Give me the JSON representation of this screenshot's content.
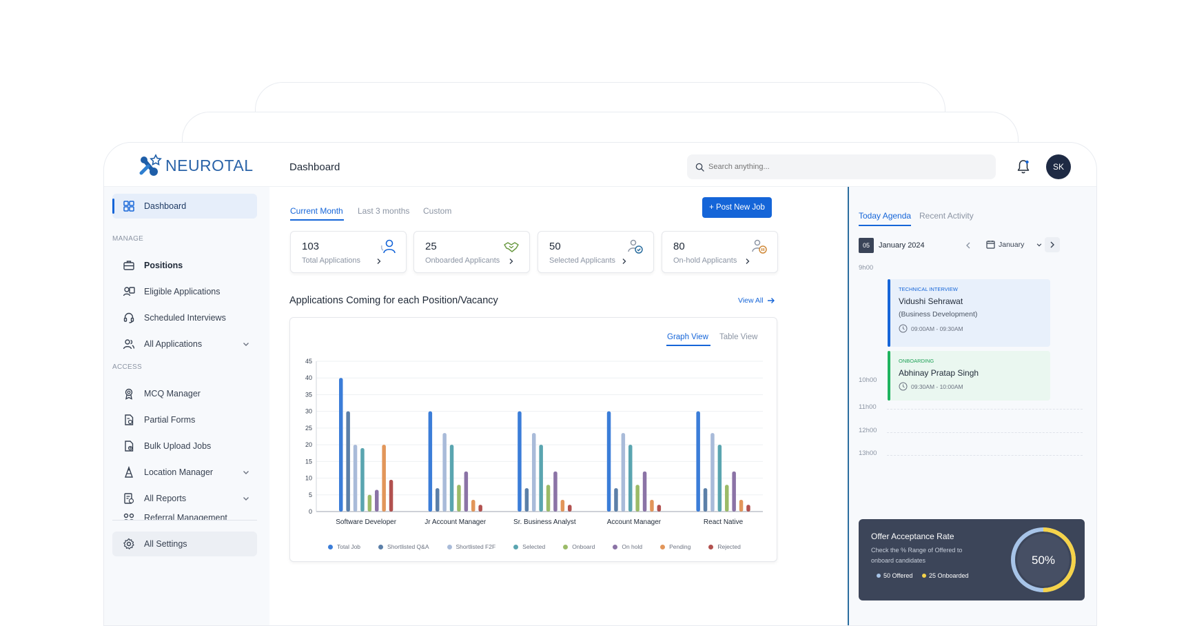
{
  "brand": {
    "name": "NEUROTAL"
  },
  "header": {
    "title": "Dashboard",
    "search_placeholder": "Search anything...",
    "avatar_initials": "SK"
  },
  "sidebar": {
    "dashboard": "Dashboard",
    "manage_label": "MANAGE",
    "positions": "Positions",
    "eligible_applications": "Eligible Applications",
    "scheduled_interviews": "Scheduled Interviews",
    "all_applications": "All Applications",
    "access_label": "ACCESS",
    "mcq_manager": "MCQ Manager",
    "partial_forms": "Partial Forms",
    "bulk_upload_jobs": "Bulk Upload Jobs",
    "location_manager": "Location Manager",
    "all_reports": "All Reports",
    "referral_management": "Referral Management",
    "all_settings": "All Settings"
  },
  "periods": {
    "current_month": "Current Month",
    "last_3_months": "Last 3 months",
    "custom": "Custom"
  },
  "post_job_label": "+  Post New Job",
  "stats": [
    {
      "value": "103",
      "label": "Total Applications"
    },
    {
      "value": "25",
      "label": "Onboarded Applicants"
    },
    {
      "value": "50",
      "label": "Selected Applicants"
    },
    {
      "value": "80",
      "label": "On-hold Applicants"
    }
  ],
  "section_title": "Applications Coming for each Position/Vacancy",
  "view_all": "View All",
  "chart_tabs": {
    "graph": "Graph View",
    "table": "Table View"
  },
  "chart_data": {
    "type": "bar",
    "categories": [
      "Software Developer",
      "Jr Account Manager",
      "Sr. Business Analyst",
      "Account Manager",
      "React Native"
    ],
    "ylim": [
      0,
      45
    ],
    "yticks": [
      0,
      5,
      10,
      15,
      20,
      25,
      30,
      35,
      40,
      45
    ],
    "grid": true,
    "legend_position": "bottom",
    "series": [
      {
        "name": "Total Job",
        "color": "#3b7dd8",
        "values": [
          40,
          30,
          30,
          30,
          30
        ]
      },
      {
        "name": "Shortlisted Q&A",
        "color": "#5b7fa8",
        "values": [
          30,
          7,
          7,
          7,
          7
        ]
      },
      {
        "name": "Shortlisted F2F",
        "color": "#a9bbd9",
        "values": [
          20,
          23.5,
          23.5,
          23.5,
          23.5
        ]
      },
      {
        "name": "Selected",
        "color": "#5aa5b0",
        "values": [
          19,
          20,
          20,
          20,
          20
        ]
      },
      {
        "name": "Onboard",
        "color": "#9bbb68",
        "values": [
          5,
          8,
          8,
          8,
          8
        ]
      },
      {
        "name": "On hold",
        "color": "#8b73a6",
        "values": [
          6.5,
          12,
          12,
          12,
          12
        ]
      },
      {
        "name": "Pending",
        "color": "#e2965a",
        "values": [
          20,
          3.5,
          3.5,
          3.5,
          3.5
        ]
      },
      {
        "name": "Rejected",
        "color": "#b2514f",
        "values": [
          9.5,
          2,
          2,
          2,
          2
        ]
      }
    ]
  },
  "agenda": {
    "tab_today": "Today Agenda",
    "tab_recent": "Recent Activity",
    "day": "05",
    "month_year": "January 2024",
    "month_select": "January",
    "times": [
      "9h00",
      "10h00",
      "11h00",
      "12h00",
      "13h00"
    ],
    "events": [
      {
        "category": "TECHNICAL INTERVIEW",
        "name": "Vidushi Sehrawat",
        "dept": "(Business Development)",
        "time": "09:00AM - 09:30AM"
      },
      {
        "category": "ONBOARDING",
        "name": "Abhinay Pratap Singh",
        "time": "09:30AM - 10:00AM"
      }
    ]
  },
  "offer": {
    "title": "Offer Acceptance Rate",
    "desc": "Check the % Range of Offered to onboard candidates",
    "percent": "50%",
    "percent_value": 50,
    "offered": "50 Offered",
    "onboarded": "25 Onboarded",
    "colors": {
      "offered": "#a7c4e8",
      "onboarded": "#f5d34a"
    }
  }
}
